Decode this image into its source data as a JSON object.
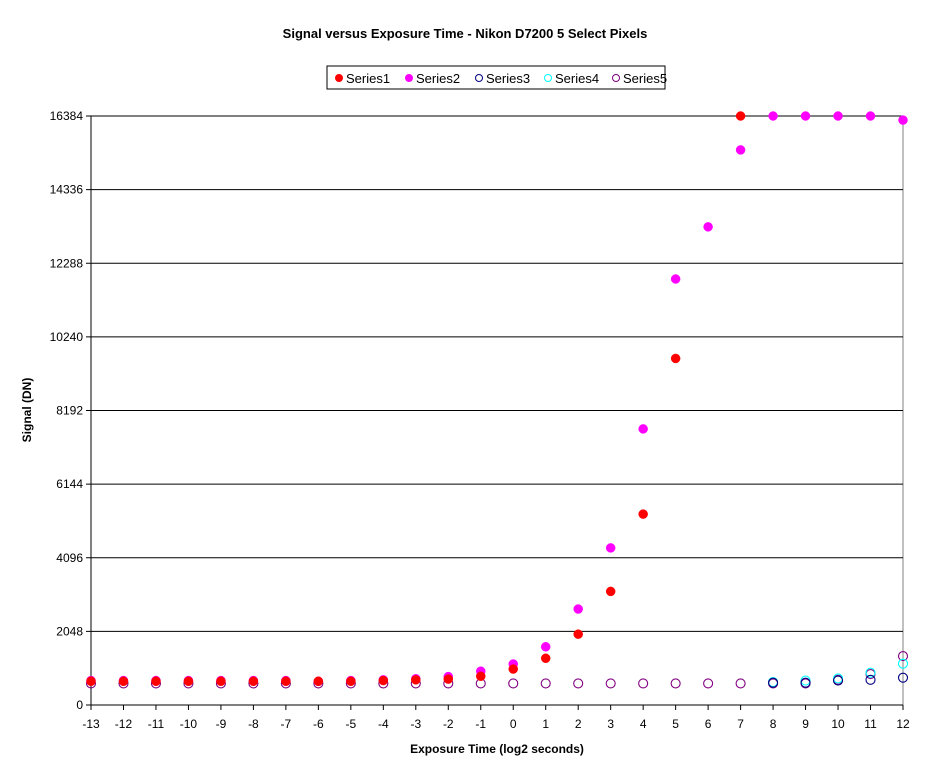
{
  "chart_data": {
    "type": "scatter",
    "title": "Signal versus Exposure Time - Nikon D7200 5 Select Pixels",
    "xlabel": "Exposure Time (log2 seconds)",
    "ylabel": "Signal (DN)",
    "xlim": [
      -13,
      12
    ],
    "ylim": [
      0,
      16384
    ],
    "x_ticks": [
      -13,
      -12,
      -11,
      -10,
      -9,
      -8,
      -7,
      -6,
      -5,
      -4,
      -3,
      -2,
      -1,
      0,
      1,
      2,
      3,
      4,
      5,
      6,
      7,
      8,
      9,
      10,
      11,
      12
    ],
    "y_ticks": [
      0,
      2048,
      4096,
      6144,
      8192,
      10240,
      12288,
      14336,
      16384
    ],
    "grid": "horizontal",
    "legend": "top",
    "x": [
      -13,
      -12,
      -11,
      -10,
      -9,
      -8,
      -7,
      -6,
      -5,
      -4,
      -3,
      -2,
      -1,
      0,
      1,
      2,
      3,
      4,
      5,
      6,
      7,
      8,
      9,
      10,
      11,
      12
    ],
    "series": [
      {
        "name": "Series1",
        "marker": "filled",
        "color": "#FF0000",
        "values": [
          660,
          660,
          660,
          660,
          660,
          660,
          660,
          660,
          660,
          680,
          700,
          720,
          800,
          1000,
          1300,
          1970,
          3160,
          5310,
          9640,
          null,
          16384,
          null,
          null,
          null,
          null,
          null
        ]
      },
      {
        "name": "Series2",
        "marker": "filled",
        "color": "#FF00FF",
        "values": [
          680,
          680,
          680,
          680,
          680,
          680,
          680,
          660,
          680,
          700,
          730,
          790,
          940,
          1140,
          1620,
          2670,
          4370,
          7680,
          11850,
          13300,
          15440,
          16384,
          16384,
          16384,
          16384,
          16270
        ]
      },
      {
        "name": "Series3",
        "marker": "hollow",
        "color": "#000080",
        "values": [
          null,
          null,
          null,
          null,
          null,
          null,
          null,
          null,
          null,
          null,
          null,
          null,
          null,
          null,
          null,
          null,
          null,
          null,
          null,
          null,
          null,
          620,
          620,
          680,
          700,
          760
        ]
      },
      {
        "name": "Series4",
        "marker": "hollow",
        "color": "#00FFFF",
        "values": [
          null,
          null,
          null,
          null,
          null,
          null,
          null,
          null,
          null,
          null,
          null,
          null,
          null,
          null,
          null,
          null,
          null,
          null,
          null,
          null,
          null,
          640,
          680,
          740,
          900,
          1150
        ]
      },
      {
        "name": "Series5",
        "marker": "hollow",
        "color": "#800080",
        "values": [
          600,
          600,
          600,
          600,
          600,
          600,
          600,
          600,
          600,
          600,
          600,
          600,
          600,
          600,
          600,
          600,
          600,
          600,
          600,
          600,
          600,
          600,
          600,
          700,
          860,
          1360
        ]
      }
    ]
  }
}
